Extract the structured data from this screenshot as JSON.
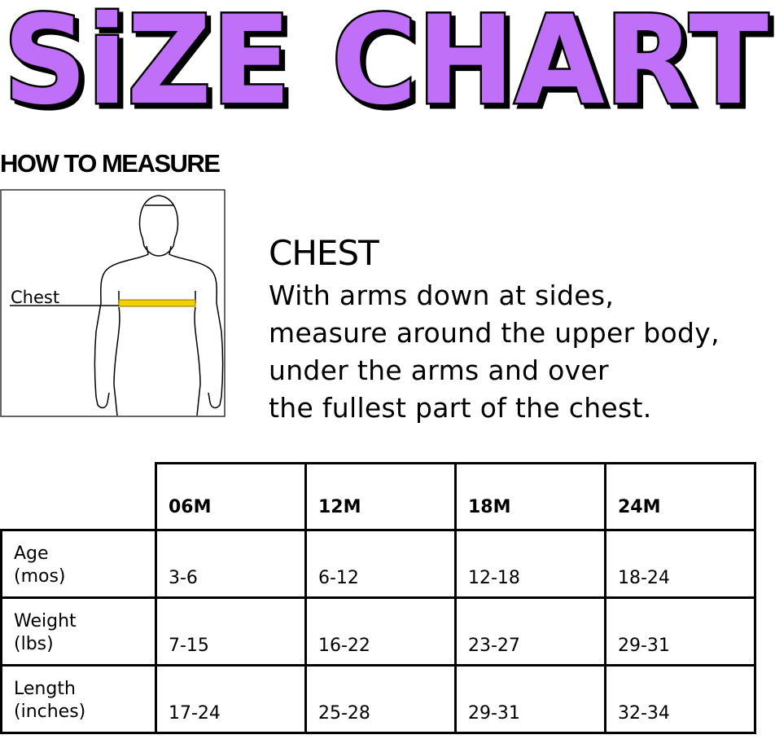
{
  "title": "SiZE CHART",
  "title_color": "#c070f8",
  "how_to_measure": "HOW TO MEASURE",
  "figure": {
    "label": "Chest",
    "tape_color": "#f4d000"
  },
  "chest": {
    "heading": "CHEST",
    "lines": [
      "With arms down at sides,",
      "measure around the upper body,",
      "under the arms and over",
      "the fullest part of the chest."
    ]
  },
  "table": {
    "columns": [
      "06M",
      "12M",
      "18M",
      "24M"
    ],
    "rows": [
      {
        "label": [
          "Age",
          "(mos)"
        ],
        "values": [
          "3-6",
          "6-12",
          "12-18",
          "18-24"
        ]
      },
      {
        "label": [
          "Weight",
          "(lbs)"
        ],
        "values": [
          "7-15",
          "16-22",
          "23-27",
          "29-31"
        ]
      },
      {
        "label": [
          "Length",
          "(inches)"
        ],
        "values": [
          "17-24",
          "25-28",
          "29-31",
          "32-34"
        ]
      }
    ]
  }
}
